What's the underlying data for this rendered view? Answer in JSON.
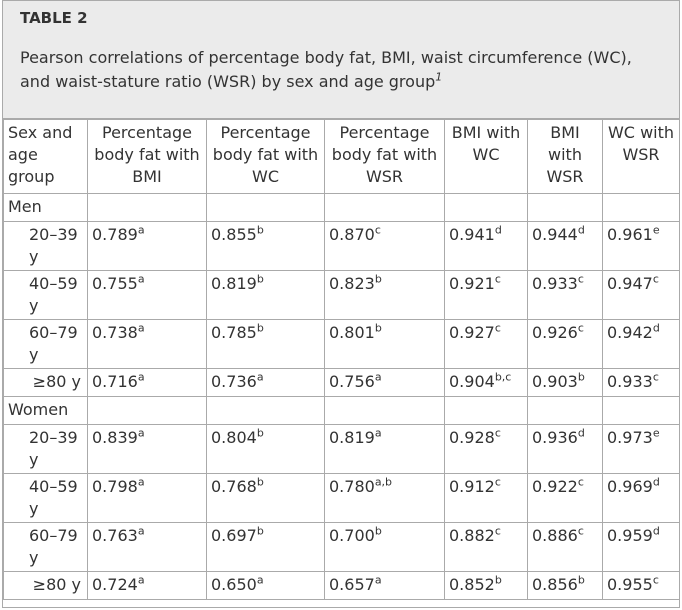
{
  "header": {
    "label": "TABLE 2",
    "caption": "Pearson correlations of percentage body fat, BMI, waist circumference (WC), and waist-stature ratio (WSR) by sex and age group",
    "caption_note": "1"
  },
  "table": {
    "columns": [
      "Sex and age group",
      "Percentage body fat with BMI",
      "Percentage body fat with WC",
      "Percentage body fat with WSR",
      "BMI with WC",
      "BMI with WSR",
      "WC with WSR"
    ],
    "groups": [
      {
        "name": "Men",
        "rows": [
          {
            "label": "20–39 y",
            "cells": [
              {
                "value": "0.789",
                "sup": "a"
              },
              {
                "value": "0.855",
                "sup": "b"
              },
              {
                "value": "0.870",
                "sup": "c"
              },
              {
                "value": "0.941",
                "sup": "d"
              },
              {
                "value": "0.944",
                "sup": "d"
              },
              {
                "value": "0.961",
                "sup": "e"
              }
            ]
          },
          {
            "label": "40–59 y",
            "cells": [
              {
                "value": "0.755",
                "sup": "a"
              },
              {
                "value": "0.819",
                "sup": "b"
              },
              {
                "value": "0.823",
                "sup": "b"
              },
              {
                "value": "0.921",
                "sup": "c"
              },
              {
                "value": "0.933",
                "sup": "c"
              },
              {
                "value": "0.947",
                "sup": "c"
              }
            ]
          },
          {
            "label": "60–79 y",
            "cells": [
              {
                "value": "0.738",
                "sup": "a"
              },
              {
                "value": "0.785",
                "sup": "b"
              },
              {
                "value": "0.801",
                "sup": "b"
              },
              {
                "value": "0.927",
                "sup": "c"
              },
              {
                "value": "0.926",
                "sup": "c"
              },
              {
                "value": "0.942",
                "sup": "d"
              }
            ]
          },
          {
            "label": "≥80 y",
            "cells": [
              {
                "value": "0.716",
                "sup": "a"
              },
              {
                "value": "0.736",
                "sup": "a"
              },
              {
                "value": "0.756",
                "sup": "a"
              },
              {
                "value": "0.904",
                "sup": "b,c"
              },
              {
                "value": "0.903",
                "sup": "b"
              },
              {
                "value": "0.933",
                "sup": "c"
              }
            ]
          }
        ]
      },
      {
        "name": "Women",
        "rows": [
          {
            "label": "20–39 y",
            "cells": [
              {
                "value": "0.839",
                "sup": "a"
              },
              {
                "value": "0.804",
                "sup": "b"
              },
              {
                "value": "0.819",
                "sup": "a"
              },
              {
                "value": "0.928",
                "sup": "c"
              },
              {
                "value": "0.936",
                "sup": "d"
              },
              {
                "value": "0.973",
                "sup": "e"
              }
            ]
          },
          {
            "label": "40–59 y",
            "cells": [
              {
                "value": "0.798",
                "sup": "a"
              },
              {
                "value": "0.768",
                "sup": "b"
              },
              {
                "value": "0.780",
                "sup": "a,b"
              },
              {
                "value": "0.912",
                "sup": "c"
              },
              {
                "value": "0.922",
                "sup": "c"
              },
              {
                "value": "0.969",
                "sup": "d"
              }
            ]
          },
          {
            "label": "60–79 y",
            "cells": [
              {
                "value": "0.763",
                "sup": "a"
              },
              {
                "value": "0.697",
                "sup": "b"
              },
              {
                "value": "0.700",
                "sup": "b"
              },
              {
                "value": "0.882",
                "sup": "c"
              },
              {
                "value": "0.886",
                "sup": "c"
              },
              {
                "value": "0.959",
                "sup": "d"
              }
            ]
          },
          {
            "label": "≥80 y",
            "cells": [
              {
                "value": "0.724",
                "sup": "a"
              },
              {
                "value": "0.650",
                "sup": "a"
              },
              {
                "value": "0.657",
                "sup": "a"
              },
              {
                "value": "0.852",
                "sup": "b"
              },
              {
                "value": "0.856",
                "sup": "b"
              },
              {
                "value": "0.955",
                "sup": "c"
              }
            ]
          }
        ]
      }
    ]
  }
}
